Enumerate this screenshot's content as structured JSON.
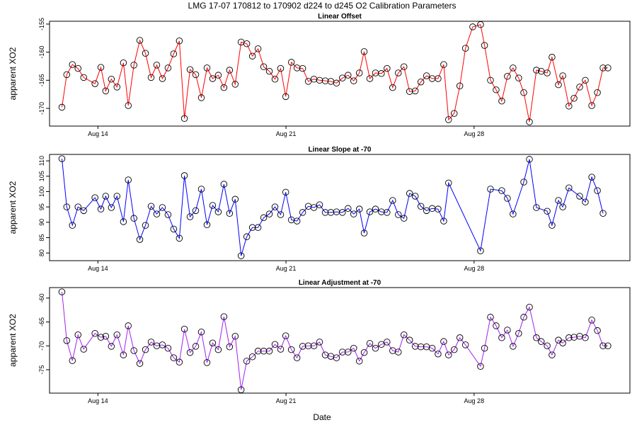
{
  "title": "LMG   17-07    170812 to 170902    d224 to d245   O2 Calibration Parameters",
  "xlabel": "Date",
  "chart_data": [
    {
      "type": "line",
      "title": "Linear Offset",
      "ylabel": "apparent XO2",
      "color": "#ff0000",
      "xlim": [
        12.2,
        33.8
      ],
      "ylim": [
        -173.15,
        -154.5
      ],
      "xticks": [
        {
          "value": 14,
          "label": "Aug 14"
        },
        {
          "value": 21,
          "label": "Aug 21"
        },
        {
          "value": 28,
          "label": "Aug 28"
        }
      ],
      "yticks": [
        -155,
        -160,
        -165,
        -170
      ],
      "x": [
        12.66,
        12.84,
        13.05,
        13.26,
        13.47,
        13.89,
        14.11,
        14.29,
        14.5,
        14.71,
        14.95,
        15.13,
        15.34,
        15.56,
        15.77,
        15.98,
        16.19,
        16.4,
        16.61,
        16.82,
        17.03,
        17.22,
        17.43,
        17.64,
        17.85,
        18.06,
        18.27,
        18.48,
        18.69,
        18.9,
        19.11,
        19.33,
        19.54,
        19.75,
        19.96,
        20.17,
        20.38,
        20.59,
        20.8,
        20.99,
        21.2,
        21.41,
        21.62,
        21.83,
        22.04,
        22.25,
        22.46,
        22.67,
        22.88,
        23.1,
        23.31,
        23.52,
        23.73,
        23.91,
        24.12,
        24.33,
        24.55,
        24.76,
        24.97,
        25.18,
        25.39,
        25.6,
        25.81,
        26.02,
        26.23,
        26.44,
        26.66,
        26.87,
        27.05,
        27.26,
        27.47,
        27.68,
        27.95,
        28.24,
        28.39,
        28.61,
        28.82,
        29.03,
        29.24,
        29.45,
        29.66,
        29.85,
        30.06,
        30.32,
        30.5,
        30.72,
        30.9,
        31.14,
        31.3,
        31.53,
        31.72,
        31.93,
        32.14,
        32.38,
        32.59,
        32.8,
        32.98
      ],
      "values": [
        -169.8,
        -164.0,
        -162.2,
        -162.9,
        -164.5,
        -165.6,
        -162.7,
        -166.9,
        -164.8,
        -166.2,
        -161.9,
        -169.5,
        -162.3,
        -157.9,
        -160.2,
        -164.5,
        -162.3,
        -164.7,
        -162.8,
        -160.3,
        -158.0,
        -171.8,
        -163.1,
        -164.0,
        -168.1,
        -162.8,
        -164.7,
        -164.1,
        -166.3,
        -163.2,
        -165.7,
        -158.2,
        -158.5,
        -160.7,
        -159.4,
        -162.6,
        -163.4,
        -164.8,
        -162.9,
        -167.9,
        -161.8,
        -162.8,
        -162.9,
        -165.2,
        -164.8,
        -165.0,
        -165.1,
        -165.2,
        -165.5,
        -164.6,
        -164.1,
        -165.1,
        -163.7,
        -159.9,
        -164.7,
        -163.7,
        -163.8,
        -162.9,
        -166.3,
        -163.7,
        -162.6,
        -167.0,
        -166.9,
        -165.3,
        -164.2,
        -164.7,
        -164.7,
        -162.2,
        -172.0,
        -170.9,
        -166.0,
        -159.3,
        -155.5,
        -155.1,
        -158.8,
        -165.0,
        -166.7,
        -168.7,
        -164.3,
        -162.8,
        -164.6,
        -167.2,
        -172.4,
        -163.2,
        -163.4,
        -163.7,
        -160.9,
        -165.8,
        -164.2,
        -169.6,
        -168.2,
        -166.2,
        -165.0,
        -169.5,
        -167.2,
        -162.8,
        -162.8
      ]
    },
    {
      "type": "line",
      "title": "Linear Slope at -70",
      "ylabel": "apparent XO2",
      "color": "#0000ff",
      "xlim": [
        12.2,
        33.8
      ],
      "ylim": [
        77.5,
        112.1
      ],
      "xticks": [
        {
          "value": 14,
          "label": "Aug 14"
        },
        {
          "value": 21,
          "label": "Aug 21"
        },
        {
          "value": 28,
          "label": "Aug 28"
        }
      ],
      "yticks": [
        80,
        85,
        90,
        95,
        100,
        105,
        110
      ],
      "x": [
        12.66,
        12.84,
        13.05,
        13.26,
        13.47,
        13.89,
        14.11,
        14.29,
        14.5,
        14.71,
        14.95,
        15.13,
        15.34,
        15.56,
        15.77,
        15.98,
        16.19,
        16.4,
        16.61,
        16.82,
        17.03,
        17.22,
        17.43,
        17.64,
        17.85,
        18.06,
        18.27,
        18.48,
        18.69,
        18.9,
        19.11,
        19.33,
        19.54,
        19.75,
        19.96,
        20.17,
        20.38,
        20.59,
        20.8,
        20.99,
        21.2,
        21.41,
        21.62,
        21.83,
        22.04,
        22.25,
        22.46,
        22.67,
        22.88,
        23.1,
        23.31,
        23.52,
        23.73,
        23.91,
        24.12,
        24.33,
        24.55,
        24.76,
        24.97,
        25.18,
        25.39,
        25.6,
        25.81,
        26.02,
        26.23,
        26.44,
        26.66,
        26.87,
        27.05,
        28.24,
        28.61,
        29.03,
        29.24,
        29.45,
        29.85,
        30.06,
        30.32,
        30.72,
        30.9,
        31.14,
        31.3,
        31.53,
        31.93,
        32.14,
        32.38,
        32.59,
        32.8
      ],
      "values": [
        110.7,
        95.0,
        89.0,
        95.0,
        93.8,
        98.0,
        94.3,
        98.5,
        94.8,
        98.5,
        90.2,
        103.8,
        91.3,
        84.4,
        89.0,
        95.2,
        92.7,
        94.8,
        92.5,
        87.8,
        84.8,
        105.2,
        91.8,
        93.8,
        100.8,
        89.2,
        95.5,
        93.4,
        102.4,
        92.9,
        97.5,
        79.1,
        85.3,
        88.3,
        88.3,
        91.5,
        92.7,
        95.0,
        92.5,
        99.8,
        90.8,
        90.4,
        93.2,
        95.2,
        94.8,
        95.7,
        93.2,
        93.2,
        93.4,
        93.2,
        94.5,
        92.7,
        94.3,
        86.5,
        93.4,
        94.3,
        93.4,
        93.2,
        97.1,
        92.5,
        91.3,
        99.4,
        98.5,
        95.2,
        93.8,
        94.5,
        94.3,
        90.4,
        102.8,
        80.7,
        100.8,
        100.3,
        97.8,
        92.7,
        103.1,
        110.5,
        94.8,
        93.6,
        89.0,
        97.1,
        95.0,
        101.2,
        98.5,
        96.6,
        104.7,
        100.3,
        92.9
      ]
    },
    {
      "type": "line",
      "title": "Linear Adjustment at -70",
      "ylabel": "apparent XO2",
      "color": "#a020f0",
      "xlim": [
        12.2,
        33.8
      ],
      "ylim": [
        -79.9,
        -57.8
      ],
      "xticks": [
        {
          "value": 14,
          "label": "Aug 14"
        },
        {
          "value": 21,
          "label": "Aug 21"
        },
        {
          "value": 28,
          "label": "Aug 28"
        }
      ],
      "yticks": [
        -60,
        -65,
        -70,
        -75
      ],
      "x": [
        12.66,
        12.84,
        13.05,
        13.26,
        13.47,
        13.89,
        14.11,
        14.29,
        14.5,
        14.71,
        14.95,
        15.13,
        15.34,
        15.56,
        15.77,
        15.98,
        16.19,
        16.4,
        16.61,
        16.82,
        17.03,
        17.22,
        17.43,
        17.64,
        17.85,
        18.06,
        18.27,
        18.48,
        18.69,
        18.9,
        19.11,
        19.33,
        19.54,
        19.75,
        19.96,
        20.17,
        20.38,
        20.59,
        20.8,
        20.99,
        21.2,
        21.41,
        21.62,
        21.83,
        22.04,
        22.25,
        22.46,
        22.67,
        22.88,
        23.1,
        23.31,
        23.52,
        23.73,
        23.91,
        24.12,
        24.33,
        24.55,
        24.76,
        24.97,
        25.18,
        25.39,
        25.6,
        25.81,
        26.02,
        26.23,
        26.44,
        26.66,
        26.87,
        27.05,
        27.26,
        27.47,
        27.68,
        28.24,
        28.39,
        28.61,
        28.82,
        29.03,
        29.24,
        29.45,
        29.66,
        29.85,
        30.06,
        30.32,
        30.5,
        30.72,
        30.9,
        31.14,
        31.3,
        31.53,
        31.72,
        31.93,
        32.14,
        32.38,
        32.59,
        32.8,
        32.98
      ],
      "values": [
        -58.7,
        -68.9,
        -73.1,
        -67.7,
        -70.7,
        -67.4,
        -68.2,
        -68.0,
        -70.1,
        -67.7,
        -71.9,
        -65.8,
        -71.0,
        -73.7,
        -70.8,
        -69.2,
        -70.0,
        -69.8,
        -70.5,
        -72.5,
        -73.4,
        -66.5,
        -71.4,
        -70.1,
        -67.1,
        -73.5,
        -69.4,
        -70.8,
        -63.9,
        -70.2,
        -68.0,
        -79.2,
        -73.2,
        -72.3,
        -71.1,
        -71.1,
        -71.1,
        -69.7,
        -70.7,
        -67.9,
        -70.8,
        -72.5,
        -70.1,
        -70.0,
        -70.0,
        -69.2,
        -71.9,
        -72.2,
        -72.5,
        -71.3,
        -71.3,
        -70.5,
        -73.2,
        -71.4,
        -69.5,
        -70.5,
        -69.7,
        -69.2,
        -71.0,
        -71.3,
        -67.7,
        -68.8,
        -70.1,
        -70.2,
        -70.2,
        -70.5,
        -71.7,
        -69.1,
        -71.9,
        -70.8,
        -68.3,
        -69.8,
        -74.3,
        -70.5,
        -64.0,
        -65.8,
        -68.3,
        -66.7,
        -70.1,
        -67.4,
        -64.0,
        -61.9,
        -68.3,
        -69.1,
        -70.0,
        -71.9,
        -68.8,
        -69.4,
        -68.3,
        -68.2,
        -68.0,
        -68.3,
        -64.6,
        -66.8,
        -70.0,
        -70.0
      ]
    }
  ]
}
